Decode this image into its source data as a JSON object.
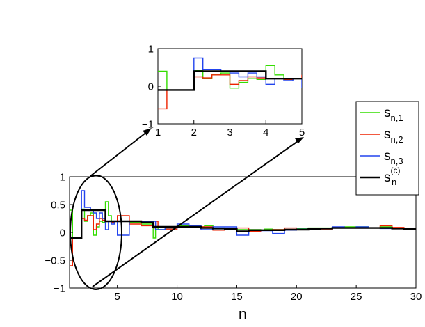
{
  "chart_data": [
    {
      "type": "line",
      "subtype": "step",
      "role": "main",
      "xlabel": "n",
      "ylabel": "",
      "xlim": [
        1,
        30
      ],
      "ylim": [
        -1,
        1
      ],
      "xticks": [
        "5",
        "10",
        "15",
        "20",
        "25",
        "30"
      ],
      "xtick_values": [
        5,
        10,
        15,
        20,
        25,
        30
      ],
      "yticks": [
        "−1",
        "−0.5",
        "0",
        "0.5",
        "1"
      ],
      "ytick_values": [
        -1,
        -0.5,
        0,
        0.5,
        1
      ],
      "grid": false,
      "series": [
        {
          "key": "s1",
          "color": "#33dd00",
          "x": [
            1,
            1.25,
            1.5,
            2,
            2.25,
            2.5,
            2.75,
            3,
            3.25,
            3.5,
            3.75,
            4,
            4.25,
            4.5,
            4.75,
            5,
            6,
            7,
            8,
            8.2,
            8.4,
            9,
            10,
            11,
            12,
            12.3,
            13,
            14,
            15,
            16,
            17,
            17.3,
            18,
            19,
            20,
            21,
            22,
            23,
            24,
            25,
            26,
            27,
            28,
            29,
            30
          ],
          "y": [
            0.4,
            -0.1,
            -0.1,
            0.42,
            0.2,
            0.3,
            0.35,
            -0.05,
            0.1,
            0.2,
            0.18,
            0.55,
            0.3,
            0.18,
            0.2,
            0.2,
            0.18,
            0.15,
            -0.1,
            0.1,
            0.05,
            0.08,
            0.12,
            0.1,
            0.1,
            0.12,
            0.08,
            0.06,
            0.05,
            0.05,
            0.04,
            0.06,
            0.05,
            0.05,
            0.07,
            0.08,
            0.08,
            0.08,
            0.1,
            0.1,
            0.08,
            0.1,
            0.08,
            0.06,
            0.05
          ]
        },
        {
          "key": "s2",
          "color": "#ee2200",
          "x": [
            1,
            1.25,
            1.5,
            2,
            2.25,
            2.5,
            2.75,
            3,
            3.25,
            3.5,
            3.75,
            4,
            4.25,
            4.5,
            4.75,
            5,
            6,
            7,
            8,
            8.2,
            8.4,
            9,
            10,
            11,
            12,
            13,
            14,
            15,
            16,
            17,
            18,
            19,
            20,
            21,
            22,
            23,
            24,
            25,
            26,
            27,
            28,
            29,
            30
          ],
          "y": [
            -0.6,
            -0.1,
            -0.1,
            0.25,
            0.22,
            0.3,
            0.3,
            0.05,
            0.15,
            0.25,
            0.22,
            0.2,
            0.2,
            0.18,
            0.2,
            0.3,
            0.15,
            0.12,
            0.08,
            0.2,
            0.1,
            0.06,
            0.1,
            0.12,
            0.1,
            0.04,
            0.05,
            0.08,
            0.02,
            0.04,
            0.05,
            0.08,
            0.05,
            0.06,
            0.06,
            0.08,
            0.08,
            0.09,
            0.08,
            0.12,
            0.09,
            0.07,
            0.05
          ]
        },
        {
          "key": "s3",
          "color": "#2244ee",
          "x": [
            1,
            1.25,
            1.5,
            2,
            2.25,
            2.5,
            2.75,
            3,
            3.25,
            3.5,
            3.75,
            4,
            4.25,
            4.5,
            4.75,
            5,
            6,
            7,
            8,
            8.2,
            8.4,
            9,
            10,
            11,
            12,
            13,
            14,
            15,
            16,
            17,
            18,
            19,
            20,
            21,
            22,
            23,
            24,
            25,
            26,
            27,
            28,
            29,
            30
          ],
          "y": [
            -0.1,
            -0.1,
            -0.1,
            0.75,
            0.45,
            0.45,
            0.4,
            0.35,
            0.25,
            0.35,
            0.25,
            0.05,
            0.2,
            0.15,
            0.2,
            -0.05,
            0.2,
            0.2,
            0.2,
            0.05,
            0.05,
            0.08,
            0.15,
            0.12,
            0.05,
            0.1,
            0.1,
            -0.05,
            0.04,
            0.03,
            -0.02,
            0.04,
            0.06,
            0.05,
            0.07,
            0.1,
            0.08,
            0.1,
            0.08,
            0.07,
            0.07,
            0.06,
            0.05
          ]
        },
        {
          "key": "sc",
          "color": "#000000",
          "x": [
            1,
            2,
            3,
            4,
            5,
            6,
            7,
            8,
            9,
            10,
            11,
            12,
            13,
            14,
            15,
            16,
            17,
            18,
            19,
            20,
            21,
            22,
            23,
            24,
            25,
            26,
            27,
            28,
            29,
            30
          ],
          "y": [
            -0.1,
            0.4,
            0.4,
            0.2,
            0.2,
            0.2,
            0.18,
            0.1,
            0.1,
            0.1,
            0.1,
            0.08,
            0.07,
            0.06,
            0.02,
            0.04,
            0.04,
            0.04,
            0.05,
            0.05,
            0.06,
            0.07,
            0.08,
            0.08,
            0.08,
            0.08,
            0.08,
            0.07,
            0.06,
            0.05
          ]
        }
      ]
    },
    {
      "type": "line",
      "subtype": "step",
      "role": "inset-zoom",
      "xlim": [
        1,
        5
      ],
      "ylim": [
        -1,
        1
      ],
      "xticks": [
        "1",
        "2",
        "3",
        "4",
        "5"
      ],
      "xtick_values": [
        1,
        2,
        3,
        4,
        5
      ],
      "yticks": [
        "−1",
        "0",
        "1"
      ],
      "ytick_values": [
        -1,
        0,
        1
      ],
      "grid": false,
      "note_source": "zoom of main chart for n in [1,5]"
    }
  ],
  "legend": {
    "placement": "right",
    "entries": [
      {
        "key": "s1",
        "label_base": "s",
        "label_sub": "n,1",
        "label_sup": "",
        "color": "#33dd00"
      },
      {
        "key": "s2",
        "label_base": "s",
        "label_sub": "n,2",
        "label_sup": "",
        "color": "#ee2200"
      },
      {
        "key": "s3",
        "label_base": "s",
        "label_sub": "n,3",
        "label_sup": "",
        "color": "#2244ee"
      },
      {
        "key": "sc",
        "label_base": "s",
        "label_sub": "n",
        "label_sup": "(c)",
        "color": "#000000"
      }
    ]
  }
}
